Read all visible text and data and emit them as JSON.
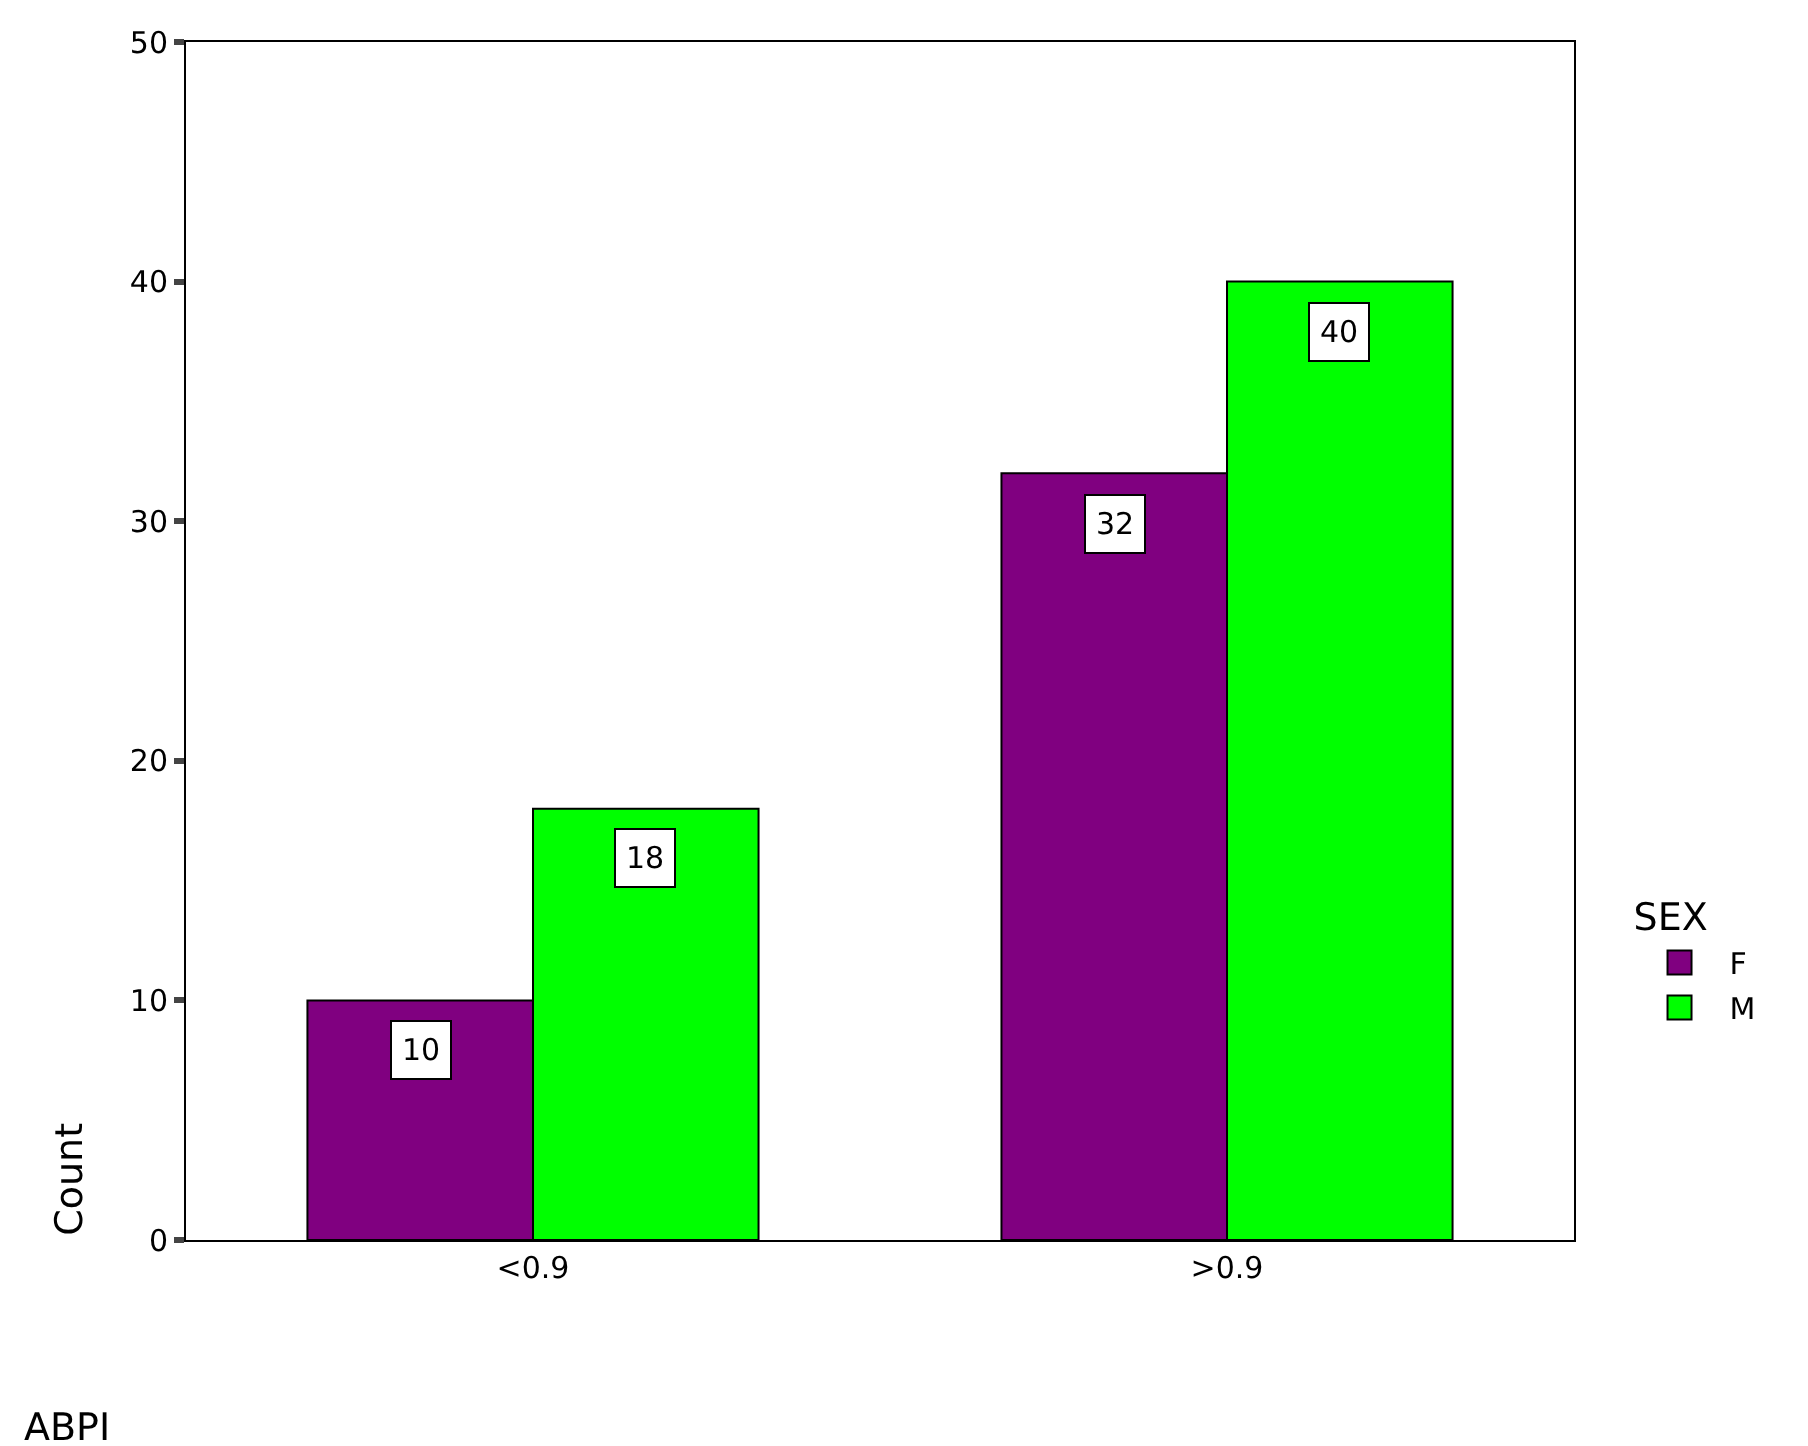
{
  "chart_data": {
    "type": "bar",
    "xlabel": "ABPI",
    "ylabel": "Count",
    "legend_title": "SEX",
    "categories": [
      "<0.9",
      ">0.9"
    ],
    "series": [
      {
        "name": "F",
        "color": "#800080",
        "values": [
          10,
          32
        ]
      },
      {
        "name": "M",
        "color": "#00ff00",
        "values": [
          18,
          40
        ]
      }
    ],
    "ylim": [
      0,
      50
    ],
    "yticks": [
      0,
      10,
      20,
      30,
      40,
      50
    ],
    "legend": "right",
    "data_labels": true
  }
}
